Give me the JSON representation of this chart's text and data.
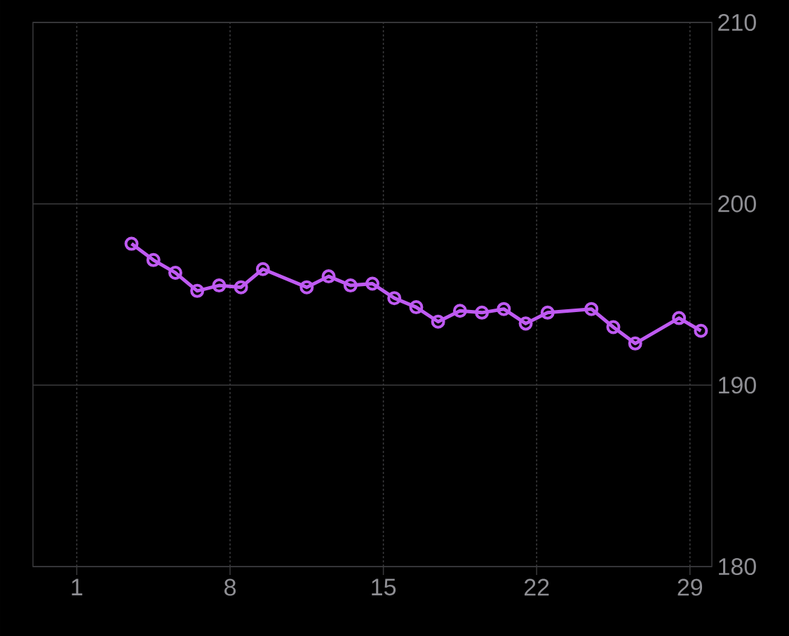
{
  "chart_data": {
    "type": "line",
    "x": [
      3.5,
      4.5,
      5.5,
      6.5,
      7.5,
      8.5,
      9.5,
      11.5,
      12.5,
      13.5,
      14.5,
      15.5,
      16.5,
      17.5,
      18.5,
      19.5,
      20.5,
      21.5,
      22.5,
      24.5,
      25.5,
      26.5,
      28.5,
      29.5
    ],
    "values": [
      197.8,
      196.9,
      196.2,
      195.2,
      195.5,
      195.4,
      196.4,
      195.4,
      196.0,
      195.5,
      195.6,
      194.8,
      194.3,
      193.5,
      194.1,
      194.0,
      194.2,
      193.4,
      194.0,
      194.2,
      193.2,
      192.3,
      193.7,
      193.0
    ],
    "color": "#bf5af2",
    "xlim": [
      -1,
      30
    ],
    "ylim": [
      180,
      210
    ],
    "xticks": [
      1,
      8,
      15,
      22,
      29
    ],
    "yticks": [
      180,
      190,
      200,
      210
    ],
    "grid": true,
    "marker": "circle",
    "line_style": "solid"
  }
}
